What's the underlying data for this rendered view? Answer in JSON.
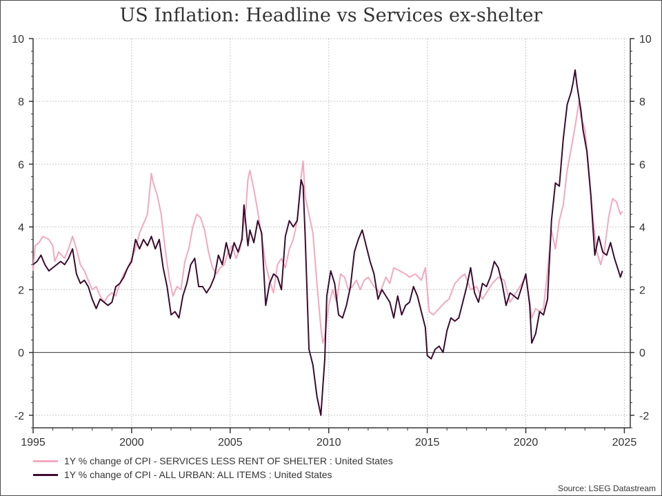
{
  "title": "US Inflation: Headline vs Services ex-shelter",
  "source": "Source: LSEG Datastream",
  "colors": {
    "services": "#f4a8bd",
    "headline": "#3a0b2e",
    "grid": "#c8c8c8",
    "axis": "#333333"
  },
  "legend": [
    {
      "key": "services",
      "label": "1Y % change of CPI - SERVICES LESS RENT OF SHELTER : United States"
    },
    {
      "key": "headline",
      "label": "1Y % change of CPI - ALL URBAN: ALL ITEMS : United States"
    }
  ],
  "chart_data": {
    "type": "line",
    "title": "US Inflation: Headline vs Services ex-shelter",
    "xlim": [
      1995,
      2025.3
    ],
    "ylim": [
      -2.4,
      10
    ],
    "x_ticks": [
      1995,
      2000,
      2005,
      2010,
      2015,
      2020,
      2025
    ],
    "y_ticks": [
      -2,
      0,
      2,
      4,
      6,
      8,
      10
    ],
    "y_axes": "left-and-right",
    "grid": true,
    "zero_line": true,
    "legend_position": "bottom",
    "series": [
      {
        "name": "1Y % change of CPI - SERVICES LESS RENT OF SHELTER : United States",
        "color_key": "services",
        "points": [
          [
            1995.0,
            2.6
          ],
          [
            1995.1,
            3.4
          ],
          [
            1995.3,
            3.5
          ],
          [
            1995.5,
            3.7
          ],
          [
            1995.8,
            3.6
          ],
          [
            1996.0,
            3.4
          ],
          [
            1996.1,
            2.9
          ],
          [
            1996.3,
            3.2
          ],
          [
            1996.6,
            3.0
          ],
          [
            1996.8,
            3.3
          ],
          [
            1997.0,
            3.7
          ],
          [
            1997.2,
            3.3
          ],
          [
            1997.4,
            2.8
          ],
          [
            1997.6,
            2.6
          ],
          [
            1997.8,
            2.3
          ],
          [
            1998.0,
            2.0
          ],
          [
            1998.2,
            2.1
          ],
          [
            1998.4,
            1.8
          ],
          [
            1998.6,
            1.6
          ],
          [
            1998.8,
            1.8
          ],
          [
            1999.0,
            1.9
          ],
          [
            1999.2,
            1.8
          ],
          [
            1999.4,
            2.2
          ],
          [
            1999.6,
            2.5
          ],
          [
            1999.8,
            2.7
          ],
          [
            2000.0,
            3.0
          ],
          [
            2000.2,
            3.3
          ],
          [
            2000.4,
            3.8
          ],
          [
            2000.6,
            4.1
          ],
          [
            2000.8,
            4.4
          ],
          [
            2001.0,
            5.7
          ],
          [
            2001.1,
            5.4
          ],
          [
            2001.3,
            5.0
          ],
          [
            2001.5,
            4.4
          ],
          [
            2001.7,
            3.3
          ],
          [
            2001.9,
            2.4
          ],
          [
            2002.1,
            1.8
          ],
          [
            2002.3,
            2.1
          ],
          [
            2002.5,
            2.0
          ],
          [
            2002.7,
            2.9
          ],
          [
            2002.9,
            3.3
          ],
          [
            2003.1,
            4.0
          ],
          [
            2003.3,
            4.4
          ],
          [
            2003.5,
            4.3
          ],
          [
            2003.7,
            3.9
          ],
          [
            2003.9,
            3.2
          ],
          [
            2004.1,
            2.7
          ],
          [
            2004.3,
            2.5
          ],
          [
            2004.5,
            2.7
          ],
          [
            2004.7,
            2.8
          ],
          [
            2004.9,
            3.2
          ],
          [
            2005.1,
            3.4
          ],
          [
            2005.3,
            3.0
          ],
          [
            2005.5,
            3.3
          ],
          [
            2005.8,
            4.6
          ],
          [
            2005.9,
            5.5
          ],
          [
            2006.0,
            5.8
          ],
          [
            2006.2,
            5.2
          ],
          [
            2006.4,
            4.5
          ],
          [
            2006.6,
            3.7
          ],
          [
            2006.8,
            2.8
          ],
          [
            2007.0,
            2.3
          ],
          [
            2007.2,
            1.9
          ],
          [
            2007.4,
            2.8
          ],
          [
            2007.6,
            3.0
          ],
          [
            2007.8,
            2.7
          ],
          [
            2008.0,
            3.3
          ],
          [
            2008.2,
            3.6
          ],
          [
            2008.4,
            4.2
          ],
          [
            2008.6,
            5.6
          ],
          [
            2008.7,
            6.1
          ],
          [
            2008.8,
            5.0
          ],
          [
            2009.0,
            4.4
          ],
          [
            2009.2,
            3.8
          ],
          [
            2009.4,
            2.2
          ],
          [
            2009.6,
            0.8
          ],
          [
            2009.7,
            0.3
          ],
          [
            2009.8,
            0.5
          ],
          [
            2010.0,
            1.5
          ],
          [
            2010.2,
            2.0
          ],
          [
            2010.4,
            1.6
          ],
          [
            2010.6,
            2.5
          ],
          [
            2010.8,
            2.4
          ],
          [
            2011.0,
            2.0
          ],
          [
            2011.2,
            2.1
          ],
          [
            2011.4,
            2.3
          ],
          [
            2011.6,
            2.0
          ],
          [
            2011.8,
            2.3
          ],
          [
            2012.0,
            2.4
          ],
          [
            2012.3,
            2.1
          ],
          [
            2012.6,
            1.9
          ],
          [
            2012.9,
            2.4
          ],
          [
            2013.1,
            2.2
          ],
          [
            2013.3,
            2.7
          ],
          [
            2013.6,
            2.6
          ],
          [
            2013.9,
            2.5
          ],
          [
            2014.1,
            2.4
          ],
          [
            2014.4,
            2.5
          ],
          [
            2014.7,
            2.3
          ],
          [
            2014.9,
            2.7
          ],
          [
            2015.1,
            1.3
          ],
          [
            2015.3,
            1.2
          ],
          [
            2015.6,
            1.4
          ],
          [
            2015.9,
            1.6
          ],
          [
            2016.1,
            1.7
          ],
          [
            2016.4,
            2.2
          ],
          [
            2016.7,
            2.4
          ],
          [
            2016.9,
            2.5
          ],
          [
            2017.2,
            2.0
          ],
          [
            2017.5,
            2.1
          ],
          [
            2017.8,
            1.7
          ],
          [
            2018.0,
            1.9
          ],
          [
            2018.3,
            2.2
          ],
          [
            2018.6,
            2.4
          ],
          [
            2018.9,
            2.3
          ],
          [
            2019.2,
            1.6
          ],
          [
            2019.5,
            1.9
          ],
          [
            2019.8,
            2.2
          ],
          [
            2020.0,
            2.4
          ],
          [
            2020.2,
            1.6
          ],
          [
            2020.3,
            1.1
          ],
          [
            2020.5,
            1.4
          ],
          [
            2020.7,
            1.3
          ],
          [
            2020.9,
            1.4
          ],
          [
            2021.1,
            2.6
          ],
          [
            2021.3,
            3.9
          ],
          [
            2021.5,
            3.3
          ],
          [
            2021.7,
            4.2
          ],
          [
            2021.9,
            4.7
          ],
          [
            2022.1,
            5.8
          ],
          [
            2022.3,
            6.5
          ],
          [
            2022.5,
            7.2
          ],
          [
            2022.7,
            8.0
          ],
          [
            2022.8,
            7.5
          ],
          [
            2023.0,
            7.1
          ],
          [
            2023.2,
            5.8
          ],
          [
            2023.4,
            4.3
          ],
          [
            2023.6,
            3.2
          ],
          [
            2023.8,
            2.8
          ],
          [
            2024.0,
            3.3
          ],
          [
            2024.2,
            4.3
          ],
          [
            2024.4,
            4.9
          ],
          [
            2024.6,
            4.8
          ],
          [
            2024.8,
            4.4
          ],
          [
            2024.9,
            4.5
          ]
        ]
      },
      {
        "name": "1Y % change of CPI - ALL URBAN: ALL ITEMS : United States",
        "color_key": "headline",
        "points": [
          [
            1995.0,
            2.8
          ],
          [
            1995.2,
            2.9
          ],
          [
            1995.4,
            3.1
          ],
          [
            1995.6,
            2.8
          ],
          [
            1995.8,
            2.6
          ],
          [
            1996.0,
            2.7
          ],
          [
            1996.2,
            2.8
          ],
          [
            1996.4,
            2.9
          ],
          [
            1996.6,
            2.8
          ],
          [
            1996.8,
            3.0
          ],
          [
            1997.0,
            3.3
          ],
          [
            1997.2,
            2.5
          ],
          [
            1997.4,
            2.2
          ],
          [
            1997.6,
            2.3
          ],
          [
            1997.8,
            2.1
          ],
          [
            1998.0,
            1.7
          ],
          [
            1998.2,
            1.4
          ],
          [
            1998.4,
            1.7
          ],
          [
            1998.6,
            1.6
          ],
          [
            1998.8,
            1.5
          ],
          [
            1999.0,
            1.6
          ],
          [
            1999.2,
            2.1
          ],
          [
            1999.4,
            2.2
          ],
          [
            1999.6,
            2.4
          ],
          [
            1999.8,
            2.7
          ],
          [
            2000.0,
            2.9
          ],
          [
            2000.2,
            3.6
          ],
          [
            2000.4,
            3.3
          ],
          [
            2000.6,
            3.6
          ],
          [
            2000.8,
            3.4
          ],
          [
            2001.0,
            3.7
          ],
          [
            2001.2,
            3.3
          ],
          [
            2001.4,
            3.6
          ],
          [
            2001.6,
            2.7
          ],
          [
            2001.8,
            2.1
          ],
          [
            2002.0,
            1.2
          ],
          [
            2002.2,
            1.3
          ],
          [
            2002.4,
            1.1
          ],
          [
            2002.6,
            1.8
          ],
          [
            2002.8,
            2.2
          ],
          [
            2003.0,
            2.8
          ],
          [
            2003.2,
            3.0
          ],
          [
            2003.4,
            2.1
          ],
          [
            2003.6,
            2.1
          ],
          [
            2003.8,
            1.9
          ],
          [
            2004.0,
            2.1
          ],
          [
            2004.2,
            2.4
          ],
          [
            2004.4,
            3.1
          ],
          [
            2004.6,
            2.8
          ],
          [
            2004.8,
            3.5
          ],
          [
            2005.0,
            3.0
          ],
          [
            2005.2,
            3.5
          ],
          [
            2005.4,
            3.2
          ],
          [
            2005.6,
            3.6
          ],
          [
            2005.7,
            4.7
          ],
          [
            2005.9,
            3.4
          ],
          [
            2006.0,
            3.9
          ],
          [
            2006.2,
            3.5
          ],
          [
            2006.4,
            4.2
          ],
          [
            2006.6,
            3.8
          ],
          [
            2006.8,
            1.5
          ],
          [
            2007.0,
            2.2
          ],
          [
            2007.2,
            2.5
          ],
          [
            2007.4,
            2.4
          ],
          [
            2007.6,
            2.0
          ],
          [
            2007.8,
            3.7
          ],
          [
            2008.0,
            4.2
          ],
          [
            2008.2,
            4.0
          ],
          [
            2008.4,
            4.2
          ],
          [
            2008.6,
            5.5
          ],
          [
            2008.7,
            5.3
          ],
          [
            2008.8,
            3.8
          ],
          [
            2009.0,
            0.1
          ],
          [
            2009.2,
            -0.4
          ],
          [
            2009.4,
            -1.4
          ],
          [
            2009.6,
            -2.0
          ],
          [
            2009.8,
            -0.2
          ],
          [
            2009.9,
            1.8
          ],
          [
            2010.1,
            2.6
          ],
          [
            2010.3,
            2.2
          ],
          [
            2010.5,
            1.2
          ],
          [
            2010.7,
            1.1
          ],
          [
            2010.9,
            1.5
          ],
          [
            2011.1,
            2.1
          ],
          [
            2011.3,
            3.2
          ],
          [
            2011.5,
            3.6
          ],
          [
            2011.7,
            3.9
          ],
          [
            2011.9,
            3.4
          ],
          [
            2012.1,
            2.9
          ],
          [
            2012.3,
            2.5
          ],
          [
            2012.5,
            1.7
          ],
          [
            2012.7,
            2.0
          ],
          [
            2012.9,
            1.8
          ],
          [
            2013.1,
            1.6
          ],
          [
            2013.3,
            1.1
          ],
          [
            2013.5,
            1.8
          ],
          [
            2013.7,
            1.2
          ],
          [
            2013.9,
            1.5
          ],
          [
            2014.1,
            1.6
          ],
          [
            2014.3,
            2.1
          ],
          [
            2014.5,
            1.8
          ],
          [
            2014.7,
            1.3
          ],
          [
            2014.9,
            0.8
          ],
          [
            2015.0,
            -0.1
          ],
          [
            2015.2,
            -0.2
          ],
          [
            2015.4,
            0.1
          ],
          [
            2015.6,
            0.2
          ],
          [
            2015.8,
            0.0
          ],
          [
            2016.0,
            0.7
          ],
          [
            2016.2,
            1.1
          ],
          [
            2016.4,
            1.0
          ],
          [
            2016.6,
            1.1
          ],
          [
            2016.8,
            1.6
          ],
          [
            2017.0,
            2.1
          ],
          [
            2017.2,
            2.7
          ],
          [
            2017.4,
            1.9
          ],
          [
            2017.6,
            1.6
          ],
          [
            2017.8,
            2.2
          ],
          [
            2018.0,
            2.1
          ],
          [
            2018.2,
            2.4
          ],
          [
            2018.4,
            2.9
          ],
          [
            2018.6,
            2.7
          ],
          [
            2018.8,
            2.2
          ],
          [
            2019.0,
            1.5
          ],
          [
            2019.2,
            1.9
          ],
          [
            2019.4,
            1.8
          ],
          [
            2019.6,
            1.7
          ],
          [
            2019.8,
            2.1
          ],
          [
            2020.0,
            2.5
          ],
          [
            2020.2,
            1.5
          ],
          [
            2020.3,
            0.3
          ],
          [
            2020.5,
            0.6
          ],
          [
            2020.7,
            1.3
          ],
          [
            2020.9,
            1.2
          ],
          [
            2021.1,
            1.7
          ],
          [
            2021.3,
            4.2
          ],
          [
            2021.5,
            5.4
          ],
          [
            2021.7,
            5.3
          ],
          [
            2021.9,
            6.8
          ],
          [
            2022.1,
            7.9
          ],
          [
            2022.3,
            8.3
          ],
          [
            2022.4,
            8.6
          ],
          [
            2022.5,
            9.0
          ],
          [
            2022.6,
            8.5
          ],
          [
            2022.8,
            7.7
          ],
          [
            2022.9,
            7.1
          ],
          [
            2023.1,
            6.4
          ],
          [
            2023.3,
            5.0
          ],
          [
            2023.5,
            3.1
          ],
          [
            2023.7,
            3.7
          ],
          [
            2023.9,
            3.2
          ],
          [
            2024.1,
            3.1
          ],
          [
            2024.3,
            3.5
          ],
          [
            2024.5,
            3.0
          ],
          [
            2024.7,
            2.6
          ],
          [
            2024.8,
            2.4
          ],
          [
            2024.9,
            2.6
          ]
        ]
      }
    ]
  }
}
